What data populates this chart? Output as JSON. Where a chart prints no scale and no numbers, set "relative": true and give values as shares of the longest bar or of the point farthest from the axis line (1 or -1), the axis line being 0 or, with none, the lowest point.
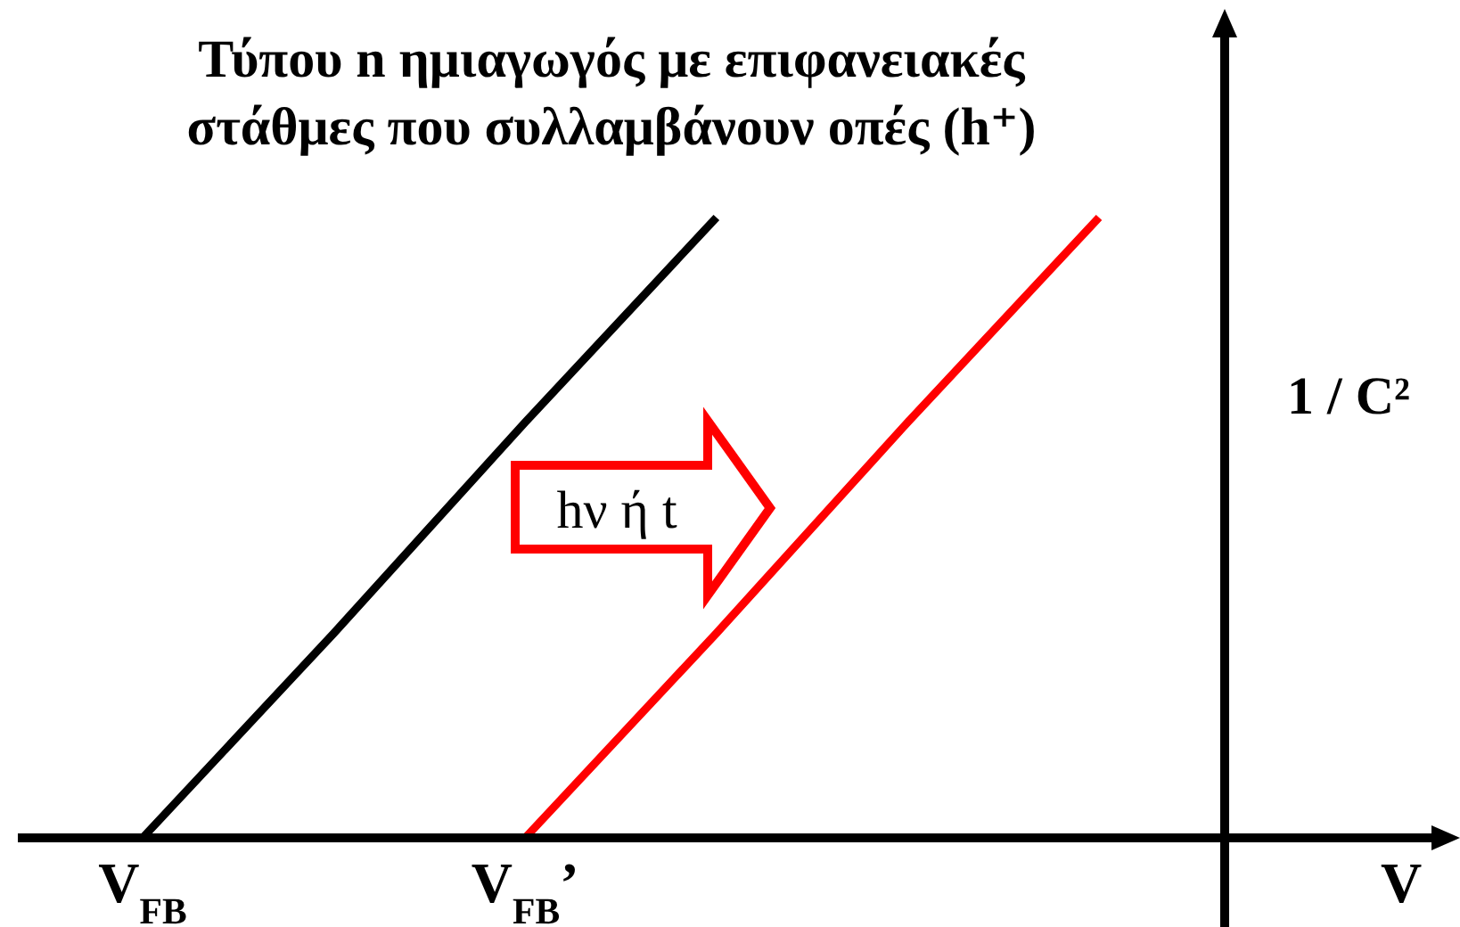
{
  "chart_data": {
    "type": "line",
    "title": "Τύπου n ημιαγωγός με επιφανειακές στάθμες που συλλαμβάνουν οπές (h⁺)",
    "xlabel": "V",
    "ylabel": "1 / C²",
    "annotations": [
      "hν ή t"
    ],
    "relative": true,
    "categories": [
      "V$_{FB}$",
      null,
      "V$_{FB}$’",
      null,
      null,
      null
    ],
    "series": [
      {
        "color": "#000000",
        "values": [
          0,
          0.33,
          0.67,
          1,
          null,
          null
        ]
      },
      {
        "color": "#ff0000",
        "values": [
          null,
          null,
          0,
          0.33,
          0.67,
          1
        ]
      }
    ]
  }
}
